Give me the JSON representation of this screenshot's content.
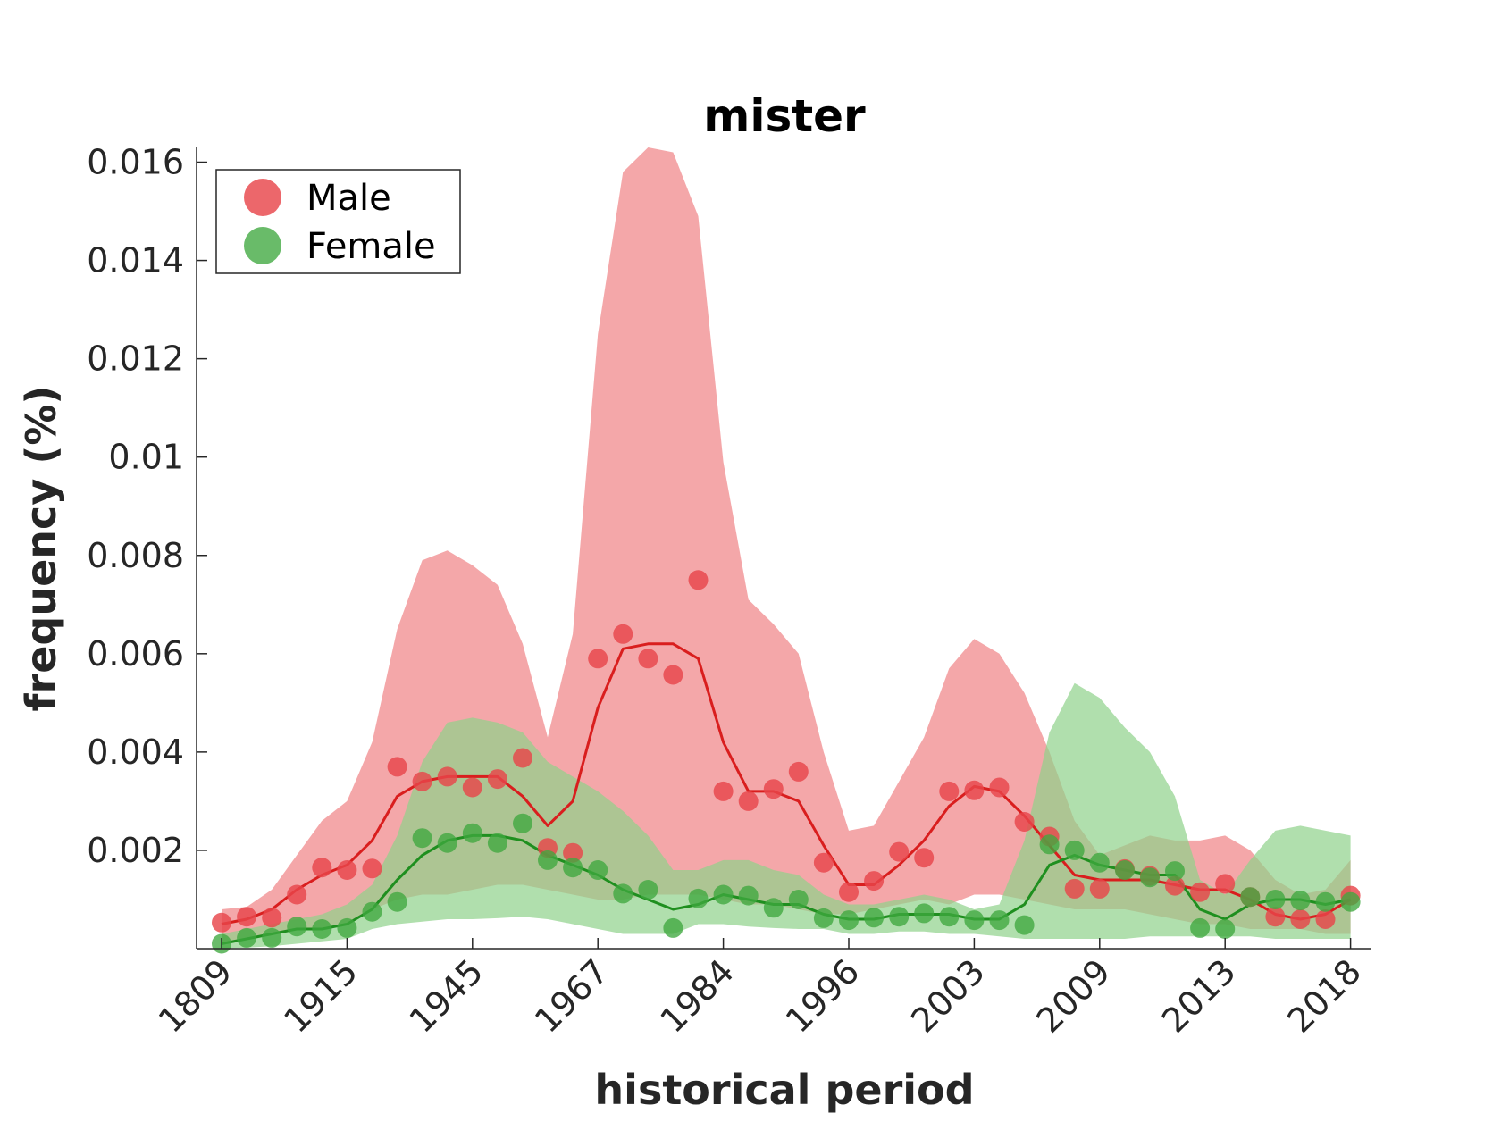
{
  "chart_data": {
    "type": "line",
    "title": "mister",
    "xlabel": "historical period",
    "ylabel": "frequency (%)",
    "categories": [
      "1809",
      "",
      "1915",
      "",
      "",
      "1945",
      "",
      "",
      "1967",
      "",
      "",
      "1984",
      "",
      "",
      "1996",
      "",
      "",
      "2003",
      "",
      "",
      "2009",
      "",
      "",
      "2013",
      "",
      "",
      "2018"
    ],
    "tick_labels": [
      "1809",
      "1915",
      "1945",
      "1967",
      "1984",
      "1996",
      "2003",
      "2009",
      "2013",
      "2018"
    ],
    "x_range": [
      1,
      47
    ],
    "ylim": [
      0,
      0.0163
    ],
    "y_ticks": [
      0.002,
      0.004,
      0.006,
      0.008,
      0.01,
      0.012,
      0.014,
      0.016
    ],
    "y_tick_labels": [
      "0.002",
      "0.004",
      "0.006",
      "0.008",
      "0.01",
      "0.012",
      "0.014",
      "0.016"
    ],
    "grid": false,
    "legend_position": "top-left",
    "colors": {
      "male": "#e8454a",
      "female": "#3fa83f",
      "male_band": "#f0898c",
      "female_band": "#8fd18a",
      "male_line": "#d91e1e",
      "female_line": "#1f8f1f"
    },
    "series": [
      {
        "name": "Male",
        "points": [
          0.00053,
          0.00065,
          0.00063,
          0.0011,
          0.00165,
          0.0016,
          0.00163,
          0.0037,
          0.0034,
          0.0035,
          0.00328,
          0.00345,
          0.00388,
          0.00205,
          0.00195,
          0.0059,
          0.0064,
          0.0059,
          0.00557,
          0.0075,
          0.0032,
          0.003,
          0.00325,
          0.0036,
          0.00175,
          0.00115,
          0.00138,
          0.00197,
          0.00185,
          0.0032,
          0.00322,
          0.00328,
          0.00258,
          0.00228,
          0.00122,
          0.00122,
          0.00162,
          0.00148,
          0.00128,
          0.00115,
          0.00132,
          0.00105,
          0.00065,
          0.0006,
          0.0006,
          0.00108
        ],
        "trend": [
          0.0005,
          0.0006,
          0.0008,
          0.0012,
          0.0015,
          0.0017,
          0.0022,
          0.0031,
          0.0034,
          0.0035,
          0.0035,
          0.0035,
          0.0031,
          0.0025,
          0.003,
          0.0049,
          0.0061,
          0.0062,
          0.0062,
          0.0059,
          0.0042,
          0.0032,
          0.0032,
          0.003,
          0.0021,
          0.0013,
          0.0013,
          0.0017,
          0.0022,
          0.0029,
          0.0033,
          0.0032,
          0.0027,
          0.0021,
          0.0015,
          0.0014,
          0.0014,
          0.0014,
          0.0013,
          0.0012,
          0.0012,
          0.001,
          0.0007,
          0.0006,
          0.0007,
          0.001
        ],
        "band_upper": [
          0.0008,
          0.00085,
          0.0012,
          0.0019,
          0.0026,
          0.003,
          0.0042,
          0.0065,
          0.0079,
          0.0081,
          0.0078,
          0.0074,
          0.0062,
          0.0043,
          0.0064,
          0.0125,
          0.0158,
          0.0163,
          0.0162,
          0.0149,
          0.0099,
          0.0071,
          0.0066,
          0.006,
          0.004,
          0.0024,
          0.0025,
          0.0034,
          0.0043,
          0.0057,
          0.0063,
          0.006,
          0.0052,
          0.004,
          0.0026,
          0.0019,
          0.0021,
          0.0023,
          0.0022,
          0.0022,
          0.0023,
          0.002,
          0.0014,
          0.0011,
          0.0012,
          0.0018
        ],
        "band_lower": [
          0.0001,
          0.0002,
          0.0003,
          0.0004,
          0.0004,
          0.0005,
          0.0008,
          0.001,
          0.0011,
          0.0011,
          0.0012,
          0.0013,
          0.0013,
          0.0012,
          0.0011,
          0.001,
          0.001,
          0.0011,
          0.0011,
          0.0011,
          0.001,
          0.0009,
          0.0009,
          0.0008,
          0.0007,
          0.0007,
          0.0008,
          0.0009,
          0.001,
          0.0009,
          0.0011,
          0.0011,
          0.001,
          0.0009,
          0.0008,
          0.0008,
          0.0008,
          0.0007,
          0.0006,
          0.0005,
          0.0005,
          0.0004,
          0.0004,
          0.0004,
          0.0003,
          0.0003
        ]
      },
      {
        "name": "Female",
        "points": [
          0.0001,
          0.00022,
          0.00022,
          0.00045,
          0.0004,
          0.00042,
          0.00075,
          0.00095,
          0.00225,
          0.00215,
          0.00235,
          0.00215,
          0.00255,
          0.0018,
          0.00165,
          0.0016,
          0.00112,
          0.0012,
          0.00042,
          0.00102,
          0.0011,
          0.00108,
          0.00083,
          0.001,
          0.00062,
          0.00058,
          0.00063,
          0.00065,
          0.00072,
          0.00065,
          0.00058,
          0.00058,
          0.00048,
          0.00212,
          0.002,
          0.00175,
          0.0016,
          0.00145,
          0.00158,
          0.00042,
          0.0004,
          0.00105,
          0.001,
          0.00098,
          0.00095,
          0.00095
        ],
        "trend": [
          0.0001,
          0.0002,
          0.0003,
          0.0004,
          0.0004,
          0.0005,
          0.0008,
          0.0014,
          0.0019,
          0.0022,
          0.0023,
          0.0023,
          0.0022,
          0.0019,
          0.0017,
          0.0015,
          0.0012,
          0.001,
          0.0008,
          0.0009,
          0.0011,
          0.001,
          0.0009,
          0.0009,
          0.0007,
          0.0006,
          0.0006,
          0.0007,
          0.0007,
          0.0007,
          0.0006,
          0.0006,
          0.0009,
          0.0017,
          0.0019,
          0.0017,
          0.0016,
          0.0015,
          0.0015,
          0.0008,
          0.0006,
          0.0009,
          0.001,
          0.001,
          0.0009,
          0.001
        ],
        "band_upper": [
          0.0003,
          0.0004,
          0.0005,
          0.0006,
          0.0007,
          0.0009,
          0.0013,
          0.0023,
          0.0038,
          0.0046,
          0.0047,
          0.0046,
          0.0044,
          0.0038,
          0.0035,
          0.0032,
          0.0028,
          0.0023,
          0.0016,
          0.0016,
          0.0018,
          0.0018,
          0.0016,
          0.0015,
          0.0011,
          0.0009,
          0.0009,
          0.001,
          0.0011,
          0.001,
          0.0008,
          0.0009,
          0.0022,
          0.0044,
          0.0054,
          0.0051,
          0.0045,
          0.004,
          0.0031,
          0.0014,
          0.0011,
          0.0018,
          0.0024,
          0.0025,
          0.0024,
          0.0023
        ],
        "band_lower": [
          1e-05,
          2e-05,
          5e-05,
          0.0001,
          0.00015,
          0.0002,
          0.0004,
          0.0005,
          0.00055,
          0.0006,
          0.0006,
          0.00062,
          0.00065,
          0.0006,
          0.0005,
          0.0004,
          0.0003,
          0.0003,
          0.0003,
          0.0005,
          0.0005,
          0.00045,
          0.00042,
          0.0004,
          0.0004,
          0.0003,
          0.0003,
          0.00035,
          0.00035,
          0.0003,
          0.0003,
          0.00025,
          0.0002,
          0.0002,
          0.0002,
          0.0002,
          0.0002,
          0.00025,
          0.00025,
          0.00025,
          0.00025,
          0.00025,
          0.0002,
          0.0002,
          0.0002,
          0.0002
        ]
      }
    ]
  }
}
